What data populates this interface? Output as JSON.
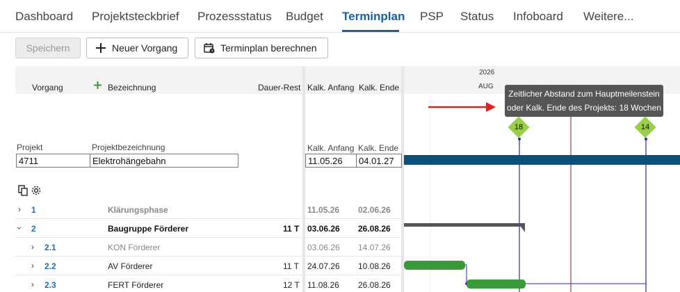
{
  "tabs": [
    {
      "label": "Dashboard"
    },
    {
      "label": "Projektsteckbrief"
    },
    {
      "label": "Prozessstatus"
    },
    {
      "label": "Budget"
    },
    {
      "label": "Terminplan"
    },
    {
      "label": "PSP"
    },
    {
      "label": "Status"
    },
    {
      "label": "Infoboard"
    },
    {
      "label": "Weitere..."
    }
  ],
  "active_tab": "Terminplan",
  "toolbar": {
    "save_label": "Speichern",
    "new_task_label": "Neuer Vorgang",
    "calc_label": "Terminplan berechnen"
  },
  "grid_header": {
    "vorgang": "Vorgang",
    "bezeichnung": "Bezeichnung",
    "dauer_rest": "Dauer-Rest",
    "kalk_anfang": "Kalk. Anfang",
    "kalk_ende": "Kalk. Ende"
  },
  "project": {
    "projekt_label": "Projekt",
    "bezeichnung_label": "Projektbezeichnung",
    "anfang_label": "Kalk. Anfang",
    "ende_label": "Kalk. Ende",
    "projekt_value": "4711",
    "bezeichnung_value": "Elektrohängebahn",
    "anfang_value": "11.05.26",
    "ende_value": "04.01.27"
  },
  "rows": [
    {
      "nr": "1",
      "name": "Klärungsphase",
      "dauer": "",
      "anfang": "11.05.26",
      "ende": "02.06.26"
    },
    {
      "nr": "2",
      "name": "Baugruppe Förderer",
      "dauer": "11 T",
      "anfang": "03.06.26",
      "ende": "26.08.26"
    },
    {
      "nr": "2.1",
      "name": "KON Förderer",
      "dauer": "",
      "anfang": "03.06.26",
      "ende": "14.07.26"
    },
    {
      "nr": "2.2",
      "name": "AV Förderer",
      "dauer": "11 T",
      "anfang": "24.07.26",
      "ende": "10.08.26"
    },
    {
      "nr": "2.3",
      "name": "FERT Förderer",
      "dauer": "12 T",
      "anfang": "11.08.26",
      "ende": "26.08.26"
    }
  ],
  "gantt": {
    "year": "2026",
    "month": "AUG",
    "tooltip_line1": "Zeitlicher Abstand zum Hauptmeilenstein",
    "tooltip_line2": "oder Kalk. Ende des Projekts: 18 Wochen",
    "milestone_1": "18",
    "milestone_2": "14",
    "colors": {
      "project_bar": "#0e4f7a",
      "summary_bar": "#555555",
      "task_bar": "#3a9a3a",
      "milestone": "#9acd4a",
      "link_line": "#2a2aa0",
      "today_line": "#7a1f2a",
      "arrow": "#e0201c"
    }
  }
}
